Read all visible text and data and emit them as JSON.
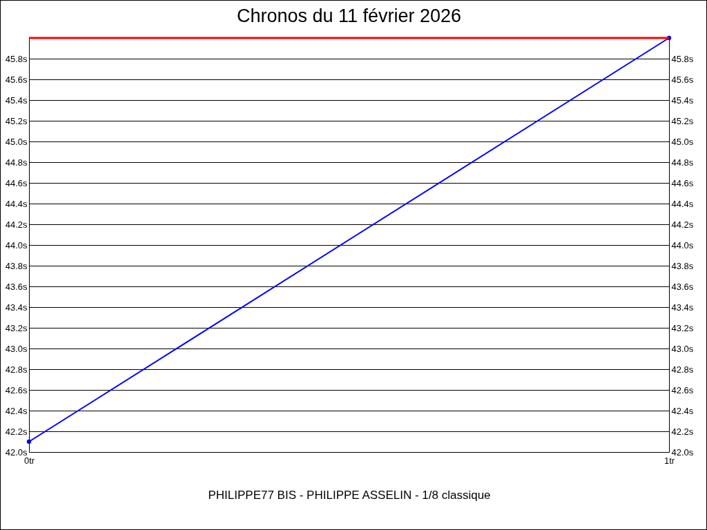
{
  "chart_data": {
    "type": "line",
    "title": "Chronos du 11 février 2026",
    "xlabel": "PHILIPPE77 BIS - PHILIPPE ASSELIN - 1/8 classique",
    "x": [
      0,
      1
    ],
    "series": [
      {
        "color": "#0000ff",
        "values": [
          42.1,
          46.0
        ]
      }
    ],
    "xlim": [
      0,
      1
    ],
    "xticks": [
      {
        "value": 0,
        "label": "0tr"
      },
      {
        "value": 1,
        "label": "1tr"
      }
    ],
    "ylim": [
      42.0,
      46.0
    ],
    "yticks": [
      {
        "value": 42.0,
        "label": "42.0s"
      },
      {
        "value": 42.2,
        "label": "42.2s"
      },
      {
        "value": 42.4,
        "label": "42.4s"
      },
      {
        "value": 42.6,
        "label": "42.6s"
      },
      {
        "value": 42.8,
        "label": "42.8s"
      },
      {
        "value": 43.0,
        "label": "43.0s"
      },
      {
        "value": 43.2,
        "label": "43.2s"
      },
      {
        "value": 43.4,
        "label": "43.4s"
      },
      {
        "value": 43.6,
        "label": "43.6s"
      },
      {
        "value": 43.8,
        "label": "43.8s"
      },
      {
        "value": 44.0,
        "label": "44.0s"
      },
      {
        "value": 44.2,
        "label": "44.2s"
      },
      {
        "value": 44.4,
        "label": "44.4s"
      },
      {
        "value": 44.6,
        "label": "44.6s"
      },
      {
        "value": 44.8,
        "label": "44.8s"
      },
      {
        "value": 45.0,
        "label": "45.0s"
      },
      {
        "value": 45.2,
        "label": "45.2s"
      },
      {
        "value": 45.4,
        "label": "45.4s"
      },
      {
        "value": 45.6,
        "label": "45.6s"
      },
      {
        "value": 45.8,
        "label": "45.8s"
      }
    ],
    "y2lim": [
      42.0,
      46.0
    ],
    "y2ticks": [
      {
        "value": 42.0,
        "label": "42.0s"
      },
      {
        "value": 42.2,
        "label": "42.2s"
      },
      {
        "value": 42.4,
        "label": "42.4s"
      },
      {
        "value": 42.6,
        "label": "42.6s"
      },
      {
        "value": 42.8,
        "label": "42.8s"
      },
      {
        "value": 43.0,
        "label": "43.0s"
      },
      {
        "value": 43.2,
        "label": "43.2s"
      },
      {
        "value": 43.4,
        "label": "43.4s"
      },
      {
        "value": 43.6,
        "label": "43.6s"
      },
      {
        "value": 43.8,
        "label": "43.8s"
      },
      {
        "value": 44.0,
        "label": "44.0s"
      },
      {
        "value": 44.2,
        "label": "44.2s"
      },
      {
        "value": 44.4,
        "label": "44.4s"
      },
      {
        "value": 44.6,
        "label": "44.6s"
      },
      {
        "value": 44.8,
        "label": "44.8s"
      },
      {
        "value": 45.0,
        "label": "45.0s"
      },
      {
        "value": 45.2,
        "label": "45.2s"
      },
      {
        "value": 45.4,
        "label": "45.4s"
      },
      {
        "value": 45.6,
        "label": "45.6s"
      },
      {
        "value": 45.8,
        "label": "45.8s"
      }
    ],
    "ref_lines": [
      {
        "axis": "y",
        "value": 46.0,
        "color": "#ff0000"
      }
    ],
    "grid": "y",
    "marker": "circle",
    "line_style": "solid"
  }
}
